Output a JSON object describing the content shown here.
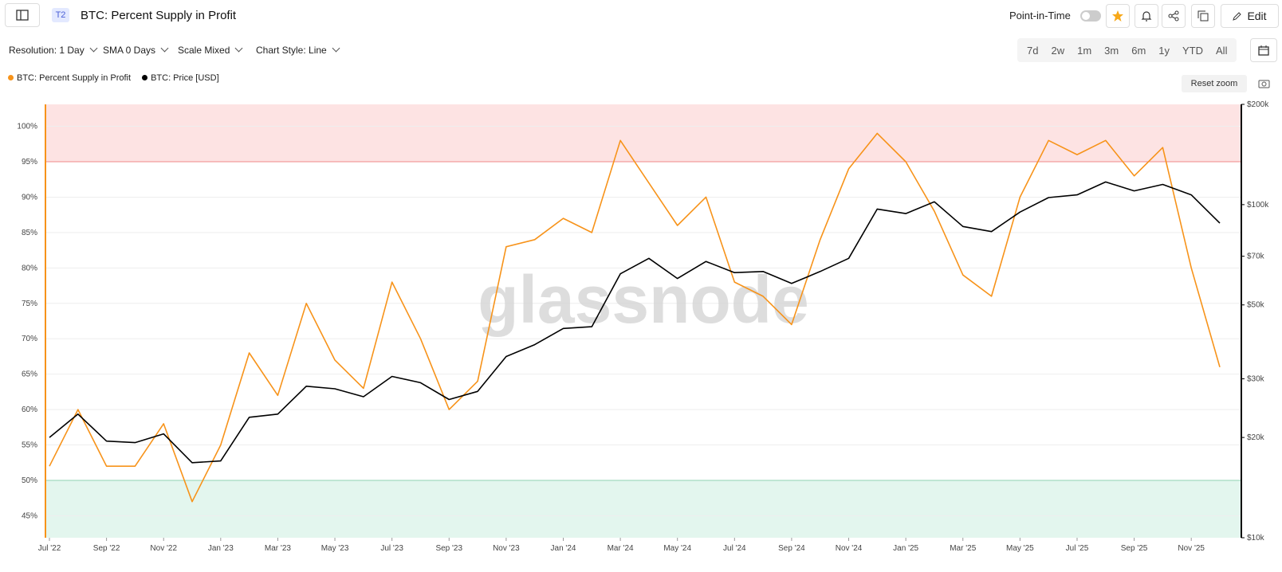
{
  "header": {
    "tag": "T2",
    "title": "BTC: Percent Supply in Profit",
    "point_in_time": "Point-in-Time",
    "edit": "Edit"
  },
  "toolbar": {
    "resolution": "Resolution: 1 Day",
    "sma": "SMA 0 Days",
    "scale": "Scale Mixed",
    "style": "Chart Style: Line",
    "ranges": [
      "7d",
      "2w",
      "1m",
      "3m",
      "6m",
      "1y",
      "YTD",
      "All"
    ],
    "reset_zoom": "Reset zoom"
  },
  "chart_data": {
    "type": "line",
    "watermark": "glassnode",
    "x": [
      "2022-07",
      "2022-08",
      "2022-09",
      "2022-10",
      "2022-11",
      "2022-12",
      "2023-01",
      "2023-02",
      "2023-03",
      "2023-04",
      "2023-05",
      "2023-06",
      "2023-07",
      "2023-08",
      "2023-09",
      "2023-10",
      "2023-11",
      "2023-12",
      "2024-01",
      "2024-02",
      "2024-03",
      "2024-04",
      "2024-05",
      "2024-06",
      "2024-07",
      "2024-08",
      "2024-09",
      "2024-10",
      "2024-11",
      "2024-12",
      "2025-01",
      "2025-02",
      "2025-03",
      "2025-04",
      "2025-05",
      "2025-06",
      "2025-07",
      "2025-08",
      "2025-09",
      "2025-10",
      "2025-11",
      "2025-12"
    ],
    "xlim": [
      "2022-07",
      "2025-12"
    ],
    "xticks": [
      {
        "value": "2022-07",
        "label": "Jul '22"
      },
      {
        "value": "2022-09",
        "label": "Sep '22"
      },
      {
        "value": "2022-11",
        "label": "Nov '22"
      },
      {
        "value": "2023-01",
        "label": "Jan '23"
      },
      {
        "value": "2023-03",
        "label": "Mar '23"
      },
      {
        "value": "2023-05",
        "label": "May '23"
      },
      {
        "value": "2023-07",
        "label": "Jul '23"
      },
      {
        "value": "2023-09",
        "label": "Sep '23"
      },
      {
        "value": "2023-11",
        "label": "Nov '23"
      },
      {
        "value": "2024-01",
        "label": "Jan '24"
      },
      {
        "value": "2024-03",
        "label": "Mar '24"
      },
      {
        "value": "2024-05",
        "label": "May '24"
      },
      {
        "value": "2024-07",
        "label": "Jul '24"
      },
      {
        "value": "2024-09",
        "label": "Sep '24"
      },
      {
        "value": "2024-11",
        "label": "Nov '24"
      },
      {
        "value": "2025-01",
        "label": "Jan '25"
      },
      {
        "value": "2025-03",
        "label": "Mar '25"
      },
      {
        "value": "2025-05",
        "label": "May '25"
      },
      {
        "value": "2025-07",
        "label": "Jul '25"
      },
      {
        "value": "2025-09",
        "label": "Sep '25"
      },
      {
        "value": "2025-11",
        "label": "Nov '25"
      }
    ],
    "ylim": [
      41.9,
      103.1
    ],
    "yticks": [
      {
        "value": 45,
        "label": "45%"
      },
      {
        "value": 50,
        "label": "50%"
      },
      {
        "value": 55,
        "label": "55%"
      },
      {
        "value": 60,
        "label": "60%"
      },
      {
        "value": 65,
        "label": "65%"
      },
      {
        "value": 70,
        "label": "70%"
      },
      {
        "value": 75,
        "label": "75%"
      },
      {
        "value": 80,
        "label": "80%"
      },
      {
        "value": 85,
        "label": "85%"
      },
      {
        "value": 90,
        "label": "90%"
      },
      {
        "value": 95,
        "label": "95%"
      },
      {
        "value": 100,
        "label": "100%"
      }
    ],
    "y2lim": [
      10000,
      200000
    ],
    "y2scale": "log",
    "y2ticks": [
      {
        "value": 10000,
        "label": "$10k"
      },
      {
        "value": 20000,
        "label": "$20k"
      },
      {
        "value": 30000,
        "label": "$30k"
      },
      {
        "value": 50000,
        "label": "$50k"
      },
      {
        "value": 70000,
        "label": "$70k"
      },
      {
        "value": 100000,
        "label": "$100k"
      },
      {
        "value": 200000,
        "label": "$200k"
      }
    ],
    "grid": true,
    "upper_threshold": 95,
    "upper_color": "#fde3e3",
    "lower_threshold": 50,
    "lower_color": "#e3f6ee",
    "series": [
      {
        "name": "BTC: Percent Supply in Profit",
        "color": "#f7931a",
        "axis": "y",
        "values": [
          52,
          60,
          52,
          52,
          58,
          47,
          55,
          68,
          62,
          75,
          67,
          63,
          78,
          70,
          60,
          64,
          83,
          84,
          87,
          85,
          98,
          92,
          86,
          90,
          78,
          76,
          72,
          84,
          94,
          99,
          95,
          88,
          79,
          76,
          90,
          98,
          96,
          98,
          93,
          97,
          80,
          66
        ]
      },
      {
        "name": "BTC: Price [USD]",
        "color": "#000000",
        "axis": "y2",
        "values": [
          20000,
          23500,
          19500,
          19300,
          20500,
          16800,
          17000,
          23000,
          23500,
          28500,
          28000,
          26500,
          30500,
          29200,
          26000,
          27500,
          35000,
          38000,
          42500,
          43000,
          62000,
          69000,
          60000,
          67500,
          62500,
          63000,
          58000,
          63000,
          69000,
          97000,
          94000,
          102000,
          86000,
          83000,
          95000,
          105000,
          107000,
          117000,
          110000,
          115000,
          107000,
          88000
        ]
      }
    ]
  }
}
